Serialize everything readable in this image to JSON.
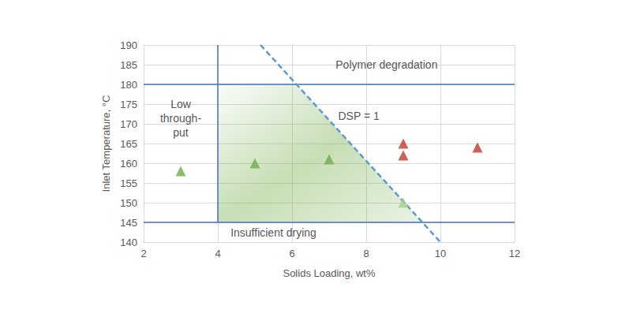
{
  "chart_data": {
    "type": "scatter",
    "x_label": "Solids Loading, wt%",
    "y_label": "Inlet Temperature, °C",
    "xlim": [
      2,
      12
    ],
    "xticks": [
      2,
      4,
      6,
      8,
      10,
      12
    ],
    "ylim": [
      140,
      190
    ],
    "yticks": [
      140,
      145,
      150,
      155,
      160,
      165,
      170,
      175,
      180,
      185,
      190
    ],
    "grid": true,
    "series": [
      {
        "color": "#70ad47",
        "marker": "triangle",
        "colors": [
          "#70ad47",
          "#70ad47",
          "#70ad47",
          "#a9d18e"
        ],
        "x": [
          3,
          5,
          7,
          9
        ],
        "values": [
          158,
          160,
          161,
          150
        ]
      },
      {
        "color": "#c0392b",
        "marker": "triangle",
        "x": [
          9,
          9,
          11
        ],
        "values": [
          165,
          162,
          164
        ]
      }
    ],
    "lines": [
      {
        "x": [
          4,
          4
        ],
        "y": [
          145,
          190
        ],
        "color": "#4472c4",
        "line_style": "solid"
      },
      {
        "x": [
          2,
          12
        ],
        "y": [
          180,
          180
        ],
        "color": "#4472c4",
        "line_style": "solid"
      },
      {
        "x": [
          2,
          12
        ],
        "y": [
          145,
          145
        ],
        "color": "#4472c4",
        "line_style": "solid"
      },
      {
        "x": [
          5.15,
          10
        ],
        "y": [
          190,
          140
        ],
        "color": "#5b9bd5",
        "line_style": "dashed"
      }
    ],
    "region": {
      "x": [
        4,
        4,
        6.12,
        9.52
      ],
      "y": [
        145,
        180,
        180,
        145
      ],
      "color": "#70ad47"
    },
    "annotations": [
      {
        "text": "Polymer degradation",
        "x": 8.55,
        "y": 185
      },
      {
        "text": "DSP = 1",
        "x": 7.8,
        "y": 172
      },
      {
        "text": "Low\nthrough-\nput",
        "x": 3.0,
        "y": 171.5
      },
      {
        "text": "Insufficient drying",
        "x": 5.5,
        "y": 142.4
      }
    ]
  }
}
